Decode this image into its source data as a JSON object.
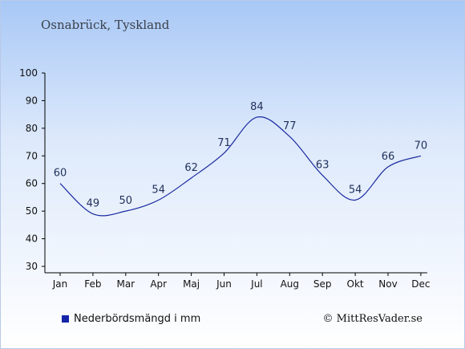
{
  "header": {
    "title": "Osnabrück, Tyskland"
  },
  "legend": {
    "label": "Nederbördsmängd i mm",
    "color": "#1624a8"
  },
  "credit": "© MittResVader.se",
  "chart_data": {
    "type": "line",
    "title": "Osnabrück, Tyskland",
    "xlabel": "",
    "ylabel": "",
    "categories": [
      "Jan",
      "Feb",
      "Mar",
      "Apr",
      "Maj",
      "Jun",
      "Jul",
      "Aug",
      "Sep",
      "Okt",
      "Nov",
      "Dec"
    ],
    "series": [
      {
        "name": "Nederbördsmängd i mm",
        "values": [
          60,
          49,
          50,
          54,
          62,
          71,
          84,
          77,
          63,
          54,
          66,
          70
        ],
        "color": "#1a2aa0"
      }
    ],
    "ylim": [
      30,
      100
    ],
    "yticks": [
      30,
      40,
      50,
      60,
      70,
      80,
      90,
      100
    ],
    "grid": false,
    "legend_position": "bottom-left"
  }
}
